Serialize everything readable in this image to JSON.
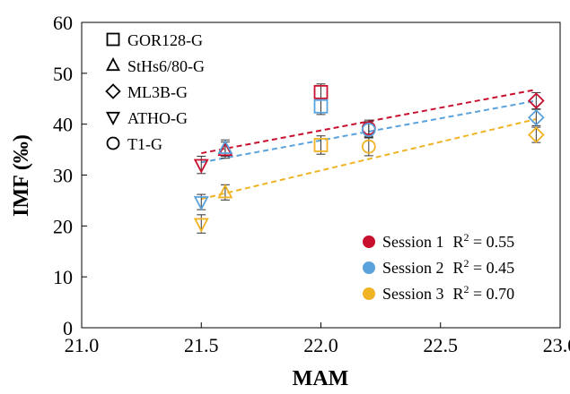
{
  "chart_data": {
    "type": "scatter",
    "xlabel": "MAM",
    "ylabel": "IMF (‰)",
    "xlim": [
      21.0,
      23.0
    ],
    "ylim": [
      0,
      60
    ],
    "x_ticks": [
      "21.0",
      "21.5",
      "22.0",
      "22.5",
      "23.0"
    ],
    "y_ticks": [
      "0",
      "10",
      "20",
      "30",
      "40",
      "50",
      "60"
    ],
    "grid": false,
    "marker_legend": [
      {
        "label": "GOR128-G",
        "marker": "square"
      },
      {
        "label": "StHs6/80-G",
        "marker": "triangle-up"
      },
      {
        "label": "ML3B-G",
        "marker": "diamond"
      },
      {
        "label": "ATHO-G",
        "marker": "triangle-down"
      },
      {
        "label": "T1-G",
        "marker": "circle"
      }
    ],
    "series": [
      {
        "name": "Session 1",
        "r2_label": "0.55",
        "color": "#c8102e",
        "points": [
          {
            "material": "GOR128-G",
            "marker": "square",
            "x": 22.0,
            "y": 46.3,
            "err": 1.6
          },
          {
            "material": "StHs6/80-G",
            "marker": "triangle-up",
            "x": 21.6,
            "y": 34.9,
            "err": 1.6
          },
          {
            "material": "ML3B-G",
            "marker": "diamond",
            "x": 22.9,
            "y": 44.6,
            "err": 1.6
          },
          {
            "material": "ATHO-G",
            "marker": "triangle-down",
            "x": 21.5,
            "y": 32.0,
            "err": 1.7
          },
          {
            "material": "T1-G",
            "marker": "circle",
            "x": 22.2,
            "y": 39.2,
            "err": 1.6
          }
        ],
        "trend": [
          [
            21.5,
            34.3
          ],
          [
            22.9,
            46.8
          ]
        ]
      },
      {
        "name": "Session 2",
        "r2_label": "0.45",
        "color": "#5aa2dc",
        "points": [
          {
            "material": "GOR128-G",
            "marker": "square",
            "x": 22.0,
            "y": 43.5,
            "err": 1.6
          },
          {
            "material": "StHs6/80-G",
            "marker": "triangle-up",
            "x": 21.6,
            "y": 35.3,
            "err": 1.6
          },
          {
            "material": "ML3B-G",
            "marker": "diamond",
            "x": 22.9,
            "y": 41.3,
            "err": 1.6
          },
          {
            "material": "ATHO-G",
            "marker": "triangle-down",
            "x": 21.5,
            "y": 24.7,
            "err": 1.5
          },
          {
            "material": "T1-G",
            "marker": "circle",
            "x": 22.2,
            "y": 38.9,
            "err": 1.6
          }
        ],
        "trend": [
          [
            21.5,
            32.5
          ],
          [
            22.9,
            44.6
          ]
        ]
      },
      {
        "name": "Session 3",
        "r2_label": "0.70",
        "color": "#f0b323",
        "points": [
          {
            "material": "GOR128-G",
            "marker": "square",
            "x": 22.0,
            "y": 35.9,
            "err": 1.8
          },
          {
            "material": "StHs6/80-G",
            "marker": "triangle-up",
            "x": 21.6,
            "y": 26.6,
            "err": 1.5
          },
          {
            "material": "ML3B-G",
            "marker": "diamond",
            "x": 22.9,
            "y": 37.9,
            "err": 1.5
          },
          {
            "material": "ATHO-G",
            "marker": "triangle-down",
            "x": 21.5,
            "y": 20.4,
            "err": 1.8
          },
          {
            "material": "T1-G",
            "marker": "circle",
            "x": 22.2,
            "y": 35.6,
            "err": 1.8
          }
        ],
        "trend": [
          [
            21.5,
            25.3
          ],
          [
            22.9,
            41.0
          ]
        ]
      }
    ]
  }
}
